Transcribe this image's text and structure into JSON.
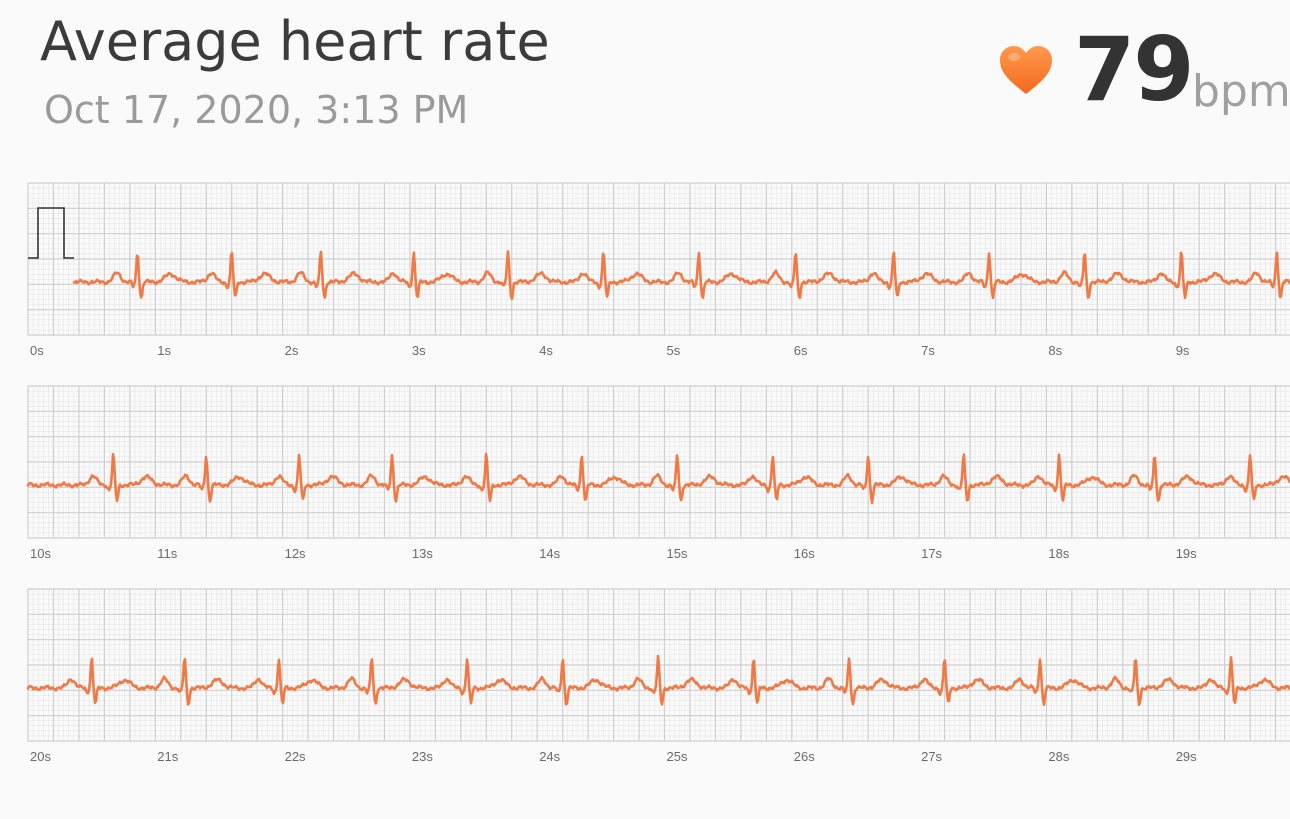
{
  "header": {
    "title": "Average heart rate",
    "datetime": "Oct 17, 2020, 3:13 PM",
    "bpm_value": "79",
    "bpm_unit": "bpm"
  },
  "icons": {
    "heart": "heart-icon"
  },
  "colors": {
    "trace": "#f07a45",
    "heart": "#f5823a",
    "grid_major": "#cfcfcf",
    "grid_minor": "#e6e6e6",
    "background": "#fafafa"
  },
  "chart_data": {
    "type": "line",
    "title": "Average heart rate",
    "xlabel": "",
    "ylabel": "",
    "x_unit_suffix": "s",
    "rows": [
      {
        "xlim": [
          0,
          10
        ],
        "tick_labels": [
          "0s",
          "1s",
          "2s",
          "3s",
          "4s",
          "5s",
          "6s",
          "7s",
          "8s",
          "9s"
        ],
        "beats": [
          0.86,
          1.6,
          2.3,
          3.03,
          3.77,
          4.52,
          5.27,
          6.03,
          6.8,
          7.55,
          8.3,
          9.06,
          9.81
        ]
      },
      {
        "xlim": [
          10,
          20
        ],
        "tick_labels": [
          "10s",
          "11s",
          "12s",
          "13s",
          "14s",
          "15s",
          "16s",
          "17s",
          "18s",
          "19s"
        ],
        "beats": [
          10.67,
          11.4,
          12.13,
          12.86,
          13.6,
          14.35,
          15.1,
          15.85,
          16.6,
          17.35,
          18.1,
          18.85,
          19.6
        ]
      },
      {
        "xlim": [
          20,
          30
        ],
        "tick_labels": [
          "20s",
          "21s",
          "22s",
          "23s",
          "24s",
          "25s",
          "26s",
          "27s",
          "28s",
          "29s"
        ],
        "beats": [
          20.5,
          21.23,
          21.97,
          22.7,
          23.45,
          24.2,
          24.95,
          25.7,
          26.45,
          27.2,
          27.95,
          28.7,
          29.45
        ]
      }
    ]
  }
}
